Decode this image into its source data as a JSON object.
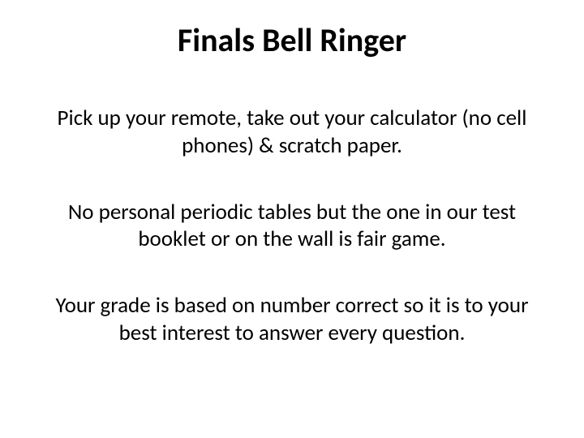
{
  "slide": {
    "title": "Finals Bell Ringer",
    "paragraphs": [
      "Pick up your remote, take out your calculator (no cell phones) & scratch paper.",
      "No personal periodic tables but the one in our test booklet or on the wall is fair game.",
      "Your grade is based on number correct so it is to your best interest to answer every question."
    ],
    "colors": {
      "background": "#ffffff",
      "text": "#000000"
    },
    "typography": {
      "title_fontsize": 40,
      "title_weight": 700,
      "body_fontsize": 27,
      "body_weight": 400,
      "font_family": "Calibri"
    }
  }
}
